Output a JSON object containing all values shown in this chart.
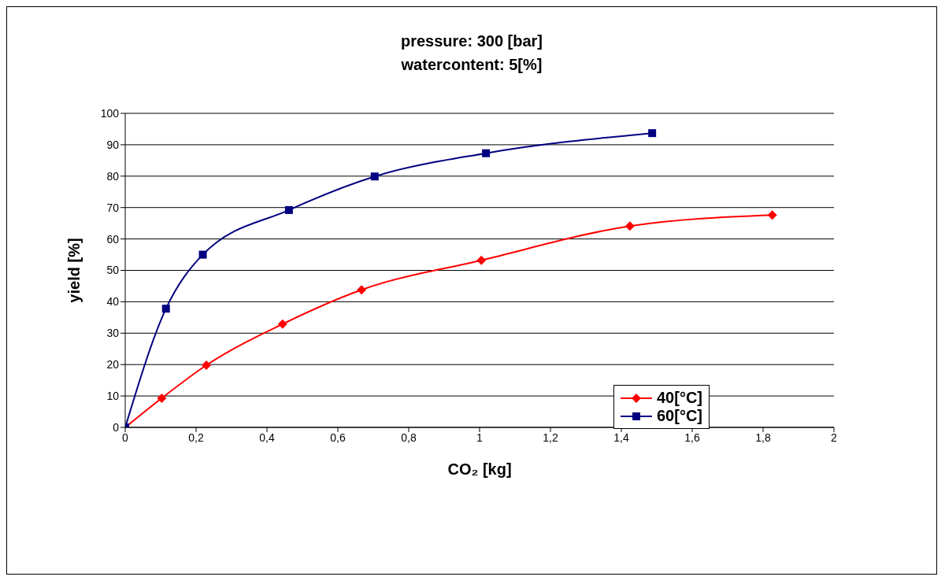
{
  "chart_data": {
    "type": "line",
    "title": "pressure: 300 [bar]",
    "subtitle": "watercontent: 5[%]",
    "xlabel": "CO₂ [kg]",
    "ylabel": "yield [%]",
    "xlim": [
      0,
      2
    ],
    "xticks": [
      0,
      {
        "value": 0.2,
        "label": "0,2"
      },
      {
        "value": 0.4,
        "label": "0,4"
      },
      {
        "value": 0.6,
        "label": "0,6"
      },
      {
        "value": 0.8,
        "label": "0,8"
      },
      1,
      {
        "value": 1.2,
        "label": "1,2"
      },
      {
        "value": 1.4,
        "label": "1,4"
      },
      {
        "value": 1.6,
        "label": "1,6"
      },
      {
        "value": 1.8,
        "label": "1,8"
      },
      2
    ],
    "ylim": [
      0,
      100
    ],
    "yticks": [
      0,
      10,
      20,
      30,
      40,
      50,
      60,
      70,
      80,
      90,
      100
    ],
    "grid": "y",
    "legend": "bottom right",
    "line_style": "solid",
    "series": [
      {
        "name": "40[°C]",
        "color": "#ff0000",
        "marker": "diamond",
        "x": [
          0,
          0.103,
          0.229,
          0.444,
          0.667,
          1.005,
          1.424,
          1.826
        ],
        "values": [
          0,
          9.3,
          19.8,
          32.9,
          43.8,
          53.2,
          64.1,
          67.6
        ]
      },
      {
        "name": "60[°C]",
        "color": "#000080",
        "marker": "square",
        "x": [
          0,
          0.115,
          0.219,
          0.462,
          0.704,
          1.018,
          1.487
        ],
        "values": [
          0,
          37.8,
          55.0,
          69.2,
          79.9,
          87.3,
          93.7
        ]
      }
    ]
  }
}
